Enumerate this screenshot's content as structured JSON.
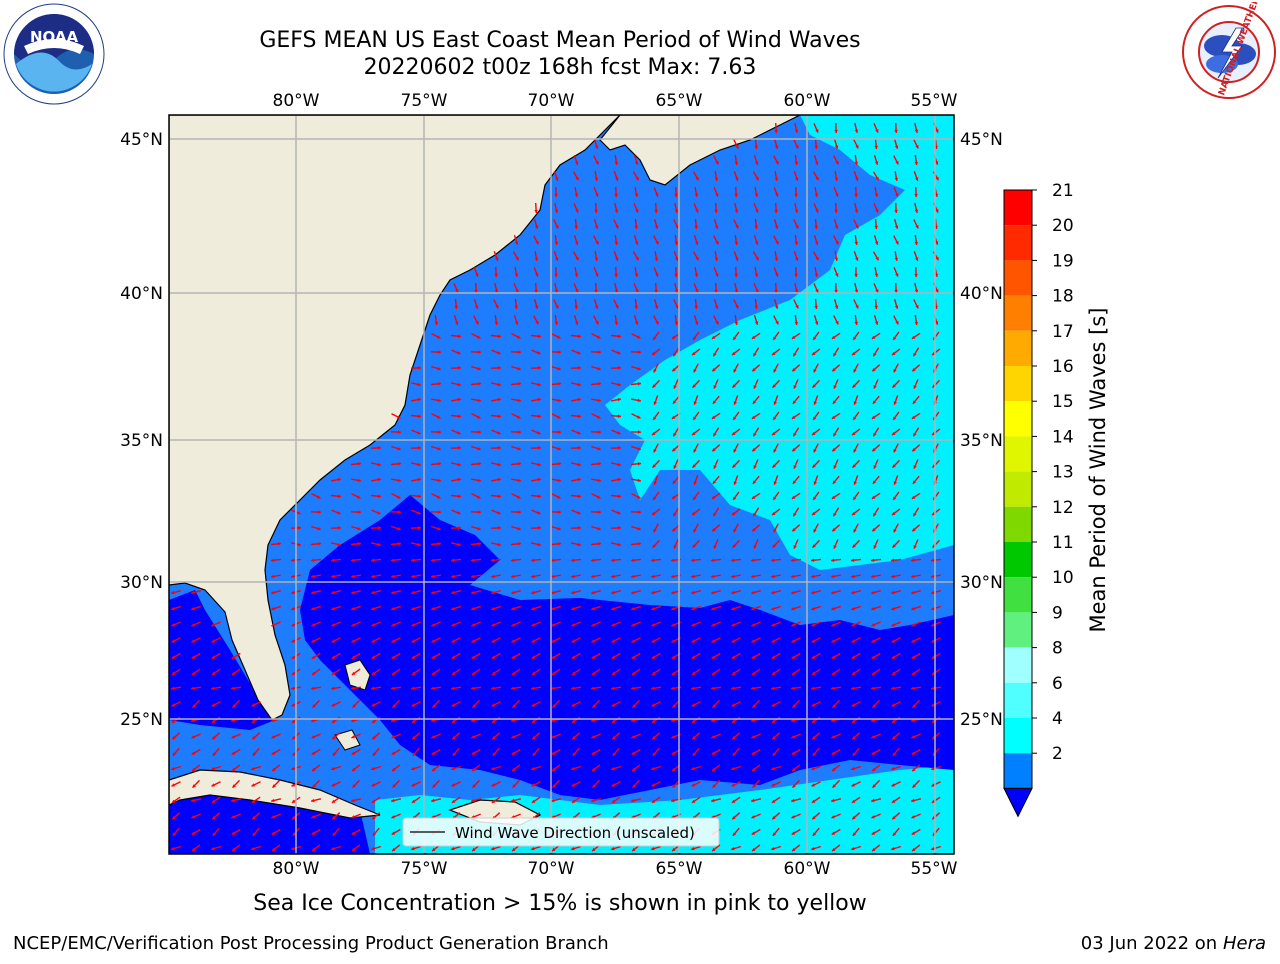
{
  "title": {
    "line1": "GEFS MEAN US East Coast Mean Period of Wind Waves",
    "line2": "20220602 t00z 168h fcst   Max: 7.63"
  },
  "logos": {
    "left": "NOAA",
    "left_ring": "NATIONAL OCEANIC AND ATMOSPHERIC ADMINISTRATION • U.S. DEPARTMENT OF COMMERCE",
    "right_ring": "NATIONAL WEATHER SERVICE"
  },
  "map": {
    "lon_labels": [
      "80°W",
      "75°W",
      "70°W",
      "65°W",
      "60°W",
      "55°W"
    ],
    "lat_labels": [
      "45°N",
      "40°N",
      "35°N",
      "30°N",
      "25°N"
    ],
    "legend_label": "Wind Wave Direction (unscaled)",
    "colors": {
      "land": "#efecdc",
      "grid": "#b4b4b4",
      "arrow": "#ff0000"
    }
  },
  "colorbar": {
    "label": "Mean Period of Wind Waves [s]",
    "ticks": [
      "21",
      "20",
      "19",
      "18",
      "17",
      "16",
      "15",
      "14",
      "13",
      "12",
      "11",
      "10",
      "9",
      "8",
      "6",
      "4",
      "2"
    ],
    "colors": [
      "#ff0000",
      "#ff2a00",
      "#ff5500",
      "#ff8000",
      "#ffaa00",
      "#ffd500",
      "#ffff00",
      "#e0f500",
      "#c0ea00",
      "#7fd800",
      "#00c800",
      "#3fe03f",
      "#5ff07f",
      "#a0ffff",
      "#50ffff",
      "#00ffff",
      "#007fff"
    ],
    "extend_color": "#0000ff"
  },
  "subtitle": "Sea Ice Concentration > 15% is shown in pink to yellow",
  "footer": {
    "credit": "NCEP/EMC/Verification Post Processing Product Generation Branch",
    "date_prefix": "03 Jun 2022 on",
    "date_machine": "Hera"
  }
}
